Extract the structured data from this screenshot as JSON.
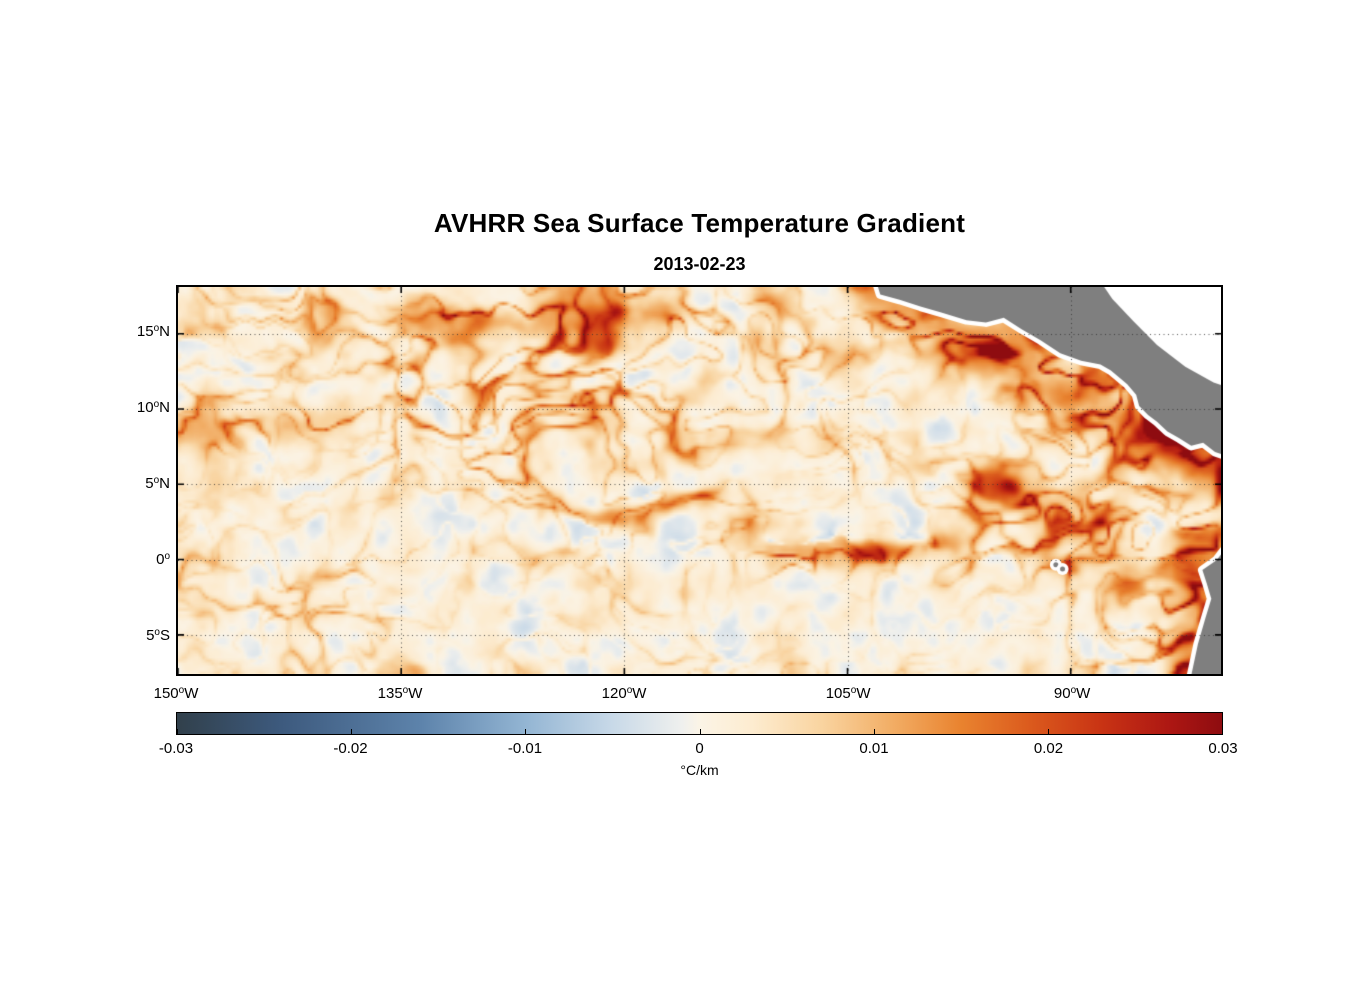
{
  "figure": {
    "title": "AVHRR Sea Surface Temperature Gradient",
    "subtitle": "2013-02-23"
  },
  "chart_data": {
    "type": "heatmap",
    "title": "AVHRR Sea Surface Temperature Gradient",
    "subtitle": "2013-02-23",
    "variable": "sea surface temperature gradient",
    "units": "°C/km",
    "extent": {
      "lon_west_degW": 150,
      "lon_east_degW": 79.9,
      "lat_north": 18.1,
      "lat_south": -7.6
    },
    "x_axis": {
      "ticks": [
        {
          "value": 150,
          "main": "150",
          "deg": "o",
          "hem": "W"
        },
        {
          "value": 135,
          "main": "135",
          "deg": "o",
          "hem": "W"
        },
        {
          "value": 120,
          "main": "120",
          "deg": "o",
          "hem": "W"
        },
        {
          "value": 105,
          "main": "105",
          "deg": "o",
          "hem": "W"
        },
        {
          "value": 90,
          "main": "90",
          "deg": "o",
          "hem": "W"
        }
      ]
    },
    "y_axis": {
      "ticks": [
        {
          "value": 15,
          "main": "15",
          "deg": "o",
          "hem": "N"
        },
        {
          "value": 10,
          "main": "10",
          "deg": "o",
          "hem": "N"
        },
        {
          "value": 5,
          "main": "5",
          "deg": "o",
          "hem": "N"
        },
        {
          "value": 0,
          "main": "0",
          "deg": "o",
          "hem": ""
        },
        {
          "value": -5,
          "main": "5",
          "deg": "o",
          "hem": "S"
        }
      ]
    },
    "grid": {
      "visible": true,
      "style": "dotted",
      "color": "#323232"
    },
    "colorbar": {
      "orientation": "horizontal",
      "min": -0.03,
      "max": 0.03,
      "label": "°C/km",
      "ticks": [
        {
          "value": -0.03,
          "label": "-0.03"
        },
        {
          "value": -0.02,
          "label": "-0.02"
        },
        {
          "value": -0.01,
          "label": "-0.01"
        },
        {
          "value": 0,
          "label": "0"
        },
        {
          "value": 0.01,
          "label": "0.01"
        },
        {
          "value": 0.02,
          "label": "0.02"
        },
        {
          "value": 0.03,
          "label": "0.03"
        }
      ],
      "stops": [
        {
          "value": -0.03,
          "color": "#31404b"
        },
        {
          "value": -0.024,
          "color": "#3d5a7e"
        },
        {
          "value": -0.016,
          "color": "#5d83ab"
        },
        {
          "value": -0.01,
          "color": "#93b5d3"
        },
        {
          "value": -0.005,
          "color": "#c8d9e8"
        },
        {
          "value": -0.001,
          "color": "#eff0ee"
        },
        {
          "value": 0.0,
          "color": "#fbf4e6"
        },
        {
          "value": 0.003,
          "color": "#fdecd0"
        },
        {
          "value": 0.007,
          "color": "#f9d4a0"
        },
        {
          "value": 0.011,
          "color": "#f2ae66"
        },
        {
          "value": 0.015,
          "color": "#e9832f"
        },
        {
          "value": 0.019,
          "color": "#db5a1d"
        },
        {
          "value": 0.023,
          "color": "#c93414"
        },
        {
          "value": 0.027,
          "color": "#ad1713"
        },
        {
          "value": 0.03,
          "color": "#8e0c10"
        }
      ]
    },
    "land_color": "#7f7f7f",
    "coast_halo_color": "#ffffff",
    "ocean_background_color": "#fdf3e2",
    "features": {
      "land_polygons": [
        [
          [
            103.2,
            18.9
          ],
          [
            102.8,
            17.6
          ],
          [
            101.5,
            17.25
          ],
          [
            100.1,
            16.8
          ],
          [
            98.7,
            16.4
          ],
          [
            97.0,
            15.9
          ],
          [
            95.7,
            15.75
          ],
          [
            94.5,
            16.05
          ],
          [
            93.3,
            15.3
          ],
          [
            92.0,
            14.55
          ],
          [
            90.7,
            13.7
          ],
          [
            89.3,
            13.2
          ],
          [
            88.0,
            12.95
          ],
          [
            87.3,
            12.55
          ],
          [
            86.2,
            11.65
          ],
          [
            85.6,
            10.95
          ],
          [
            85.4,
            10.2
          ],
          [
            84.8,
            9.6
          ],
          [
            84.2,
            9.15
          ],
          [
            83.5,
            8.5
          ],
          [
            82.7,
            8.05
          ],
          [
            81.9,
            7.55
          ],
          [
            81.1,
            7.75
          ],
          [
            80.3,
            7.15
          ],
          [
            79.4,
            6.85
          ],
          [
            78.0,
            6.4
          ],
          [
            78.0,
            18.9
          ]
        ],
        [
          [
            79.4,
            1.0
          ],
          [
            80.2,
            -0.05
          ],
          [
            81.15,
            -0.7
          ],
          [
            80.85,
            -1.6
          ],
          [
            80.55,
            -2.6
          ],
          [
            80.95,
            -3.9
          ],
          [
            81.45,
            -5.6
          ],
          [
            81.9,
            -7.7
          ],
          [
            82.2,
            -8.6
          ],
          [
            78.0,
            -8.6
          ],
          [
            78.0,
            0.6
          ]
        ]
      ],
      "nodata_polygons": [
        [
          [
            88.3,
            18.9
          ],
          [
            78.0,
            18.9
          ],
          [
            78.0,
            11.0
          ],
          [
            80.4,
            11.75
          ],
          [
            82.3,
            12.8
          ],
          [
            84.2,
            14.25
          ],
          [
            85.8,
            15.85
          ],
          [
            87.2,
            17.3
          ]
        ]
      ],
      "islands": [
        [
          91.0,
          -0.35
        ],
        [
          90.55,
          -0.62
        ]
      ],
      "front_segments": [
        {
          "from": [
            103,
            17.8
          ],
          "to": [
            84.5,
            8.3
          ],
          "width": 3.5,
          "strength": 1.5
        },
        {
          "from": [
            84.5,
            8.3
          ],
          "to": [
            79.5,
            5.3
          ],
          "width": 3.0,
          "strength": 1.4
        },
        {
          "from": [
            81.3,
            1.0
          ],
          "to": [
            82.2,
            -7.7
          ],
          "width": 3.0,
          "strength": 1.5
        },
        {
          "from": [
            110,
            0.3
          ],
          "to": [
            98,
            0.8
          ],
          "width": 1.2,
          "strength": 1.1
        },
        {
          "from": [
            133,
            15.6
          ],
          "to": [
            117,
            16.4
          ],
          "width": 1.5,
          "strength": 0.9
        },
        {
          "from": [
            150,
            8.6
          ],
          "to": [
            139,
            9.4
          ],
          "width": 1.8,
          "strength": 0.8
        },
        {
          "from": [
            96.5,
            13.8
          ],
          "to": [
            93,
            15.2
          ],
          "width": 2.2,
          "strength": 1.0
        },
        {
          "from": [
            95,
            4.5
          ],
          "to": [
            88,
            2.5
          ],
          "width": 2.5,
          "strength": 0.9
        },
        {
          "from": [
            91.5,
            0.3
          ],
          "to": [
            90.2,
            -0.9
          ],
          "width": 0.6,
          "strength": 1.0
        }
      ],
      "cold_streak": {
        "from": [
          110,
          1.2
        ],
        "to": [
          100,
          1.4
        ],
        "width": 0.5,
        "amp": 0.02
      }
    }
  }
}
